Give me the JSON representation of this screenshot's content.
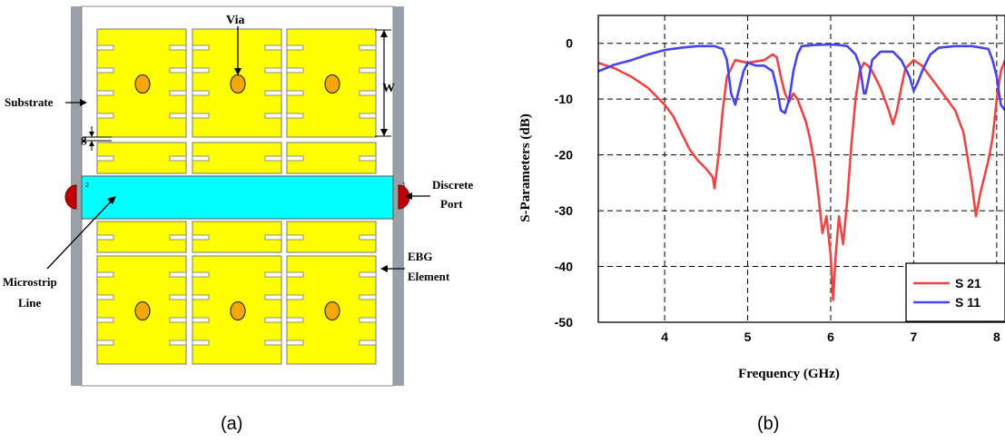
{
  "captions": {
    "left": "(a)",
    "right": "(b)"
  },
  "diagram": {
    "labels": {
      "via": "Via",
      "substrate": "Substrate",
      "w": "W",
      "g": "g",
      "discrete_port_line1": "Discrete",
      "discrete_port_line2": "Port",
      "ebg_line1": "EBG",
      "ebg_line2": "Element",
      "microstrip_line1": "Microstrip",
      "microstrip_line2": "Line",
      "port_left_number": "2",
      "port_right_number": "1"
    },
    "colors": {
      "patch": "#ffff00",
      "via": "#f5a800",
      "microstrip": "#00ffff",
      "port": "#c00000",
      "frame": "#9aa0a8"
    }
  },
  "chart_data": {
    "type": "line",
    "xlabel": "Frequency (GHz)",
    "ylabel": "S-Parameters (dB)",
    "xlim": [
      3.2,
      8.1
    ],
    "ylim": [
      -50,
      5
    ],
    "x_ticks": [
      "4",
      "5",
      "6",
      "7",
      "8"
    ],
    "y_ticks": [
      "0",
      "-10",
      "-20",
      "-30",
      "-40",
      "-50"
    ],
    "grid": true,
    "legend_position": "bottom-right",
    "series": [
      {
        "name": "S 21",
        "color": "#ee4444",
        "points": [
          [
            3.2,
            -3.5
          ],
          [
            3.4,
            -4.5
          ],
          [
            3.6,
            -6
          ],
          [
            3.8,
            -8
          ],
          [
            4.0,
            -11
          ],
          [
            4.1,
            -13
          ],
          [
            4.2,
            -16
          ],
          [
            4.3,
            -19
          ],
          [
            4.4,
            -21
          ],
          [
            4.5,
            -22.5
          ],
          [
            4.58,
            -24
          ],
          [
            4.6,
            -26
          ],
          [
            4.65,
            -20
          ],
          [
            4.7,
            -12
          ],
          [
            4.75,
            -6
          ],
          [
            4.85,
            -3
          ],
          [
            5.0,
            -3.5
          ],
          [
            5.2,
            -3
          ],
          [
            5.3,
            -2
          ],
          [
            5.35,
            -2.5
          ],
          [
            5.4,
            -6
          ],
          [
            5.45,
            -9
          ],
          [
            5.5,
            -10.5
          ],
          [
            5.55,
            -9
          ],
          [
            5.6,
            -10
          ],
          [
            5.65,
            -12
          ],
          [
            5.7,
            -14
          ],
          [
            5.75,
            -17
          ],
          [
            5.8,
            -21
          ],
          [
            5.85,
            -27
          ],
          [
            5.9,
            -34
          ],
          [
            5.95,
            -31
          ],
          [
            6.0,
            -38
          ],
          [
            6.03,
            -46
          ],
          [
            6.06,
            -38
          ],
          [
            6.1,
            -31
          ],
          [
            6.15,
            -36
          ],
          [
            6.2,
            -28
          ],
          [
            6.25,
            -18
          ],
          [
            6.3,
            -10
          ],
          [
            6.35,
            -5
          ],
          [
            6.4,
            -3.5
          ],
          [
            6.45,
            -4
          ],
          [
            6.5,
            -5
          ],
          [
            6.6,
            -8
          ],
          [
            6.7,
            -12
          ],
          [
            6.75,
            -14.5
          ],
          [
            6.8,
            -12
          ],
          [
            6.85,
            -8
          ],
          [
            6.9,
            -4.5
          ],
          [
            7.0,
            -3
          ],
          [
            7.1,
            -4
          ],
          [
            7.2,
            -6
          ],
          [
            7.3,
            -8
          ],
          [
            7.4,
            -10
          ],
          [
            7.5,
            -12
          ],
          [
            7.6,
            -16
          ],
          [
            7.7,
            -25
          ],
          [
            7.75,
            -31
          ],
          [
            7.8,
            -27
          ],
          [
            7.9,
            -21
          ],
          [
            7.95,
            -17
          ],
          [
            8.0,
            -10
          ],
          [
            8.05,
            -5
          ],
          [
            8.1,
            -3
          ]
        ]
      },
      {
        "name": "S 11",
        "color": "#4444ee",
        "points": [
          [
            3.2,
            -5
          ],
          [
            3.4,
            -3.8
          ],
          [
            3.6,
            -3
          ],
          [
            3.8,
            -2
          ],
          [
            4.0,
            -1.2
          ],
          [
            4.2,
            -0.8
          ],
          [
            4.4,
            -0.5
          ],
          [
            4.6,
            -0.5
          ],
          [
            4.7,
            -1
          ],
          [
            4.75,
            -3
          ],
          [
            4.8,
            -9
          ],
          [
            4.85,
            -11
          ],
          [
            4.9,
            -8
          ],
          [
            4.95,
            -5
          ],
          [
            5.0,
            -3.5
          ],
          [
            5.1,
            -4
          ],
          [
            5.2,
            -4
          ],
          [
            5.3,
            -5
          ],
          [
            5.35,
            -8
          ],
          [
            5.4,
            -12
          ],
          [
            5.45,
            -12.5
          ],
          [
            5.5,
            -10
          ],
          [
            5.55,
            -5
          ],
          [
            5.6,
            -2
          ],
          [
            5.65,
            -0.5
          ],
          [
            5.8,
            -0.3
          ],
          [
            6.0,
            -0.2
          ],
          [
            6.1,
            -0.3
          ],
          [
            6.2,
            -0.5
          ],
          [
            6.3,
            -2
          ],
          [
            6.35,
            -4
          ],
          [
            6.4,
            -9
          ],
          [
            6.42,
            -9
          ],
          [
            6.45,
            -7
          ],
          [
            6.5,
            -3
          ],
          [
            6.6,
            -1.5
          ],
          [
            6.75,
            -1.5
          ],
          [
            6.85,
            -3
          ],
          [
            6.95,
            -6
          ],
          [
            7.0,
            -8.5
          ],
          [
            7.05,
            -7
          ],
          [
            7.1,
            -5
          ],
          [
            7.2,
            -2
          ],
          [
            7.3,
            -0.8
          ],
          [
            7.5,
            -0.5
          ],
          [
            7.7,
            -0.5
          ],
          [
            7.9,
            -1
          ],
          [
            7.95,
            -3
          ],
          [
            8.0,
            -6
          ],
          [
            8.05,
            -11
          ],
          [
            8.1,
            -12
          ]
        ]
      }
    ]
  }
}
